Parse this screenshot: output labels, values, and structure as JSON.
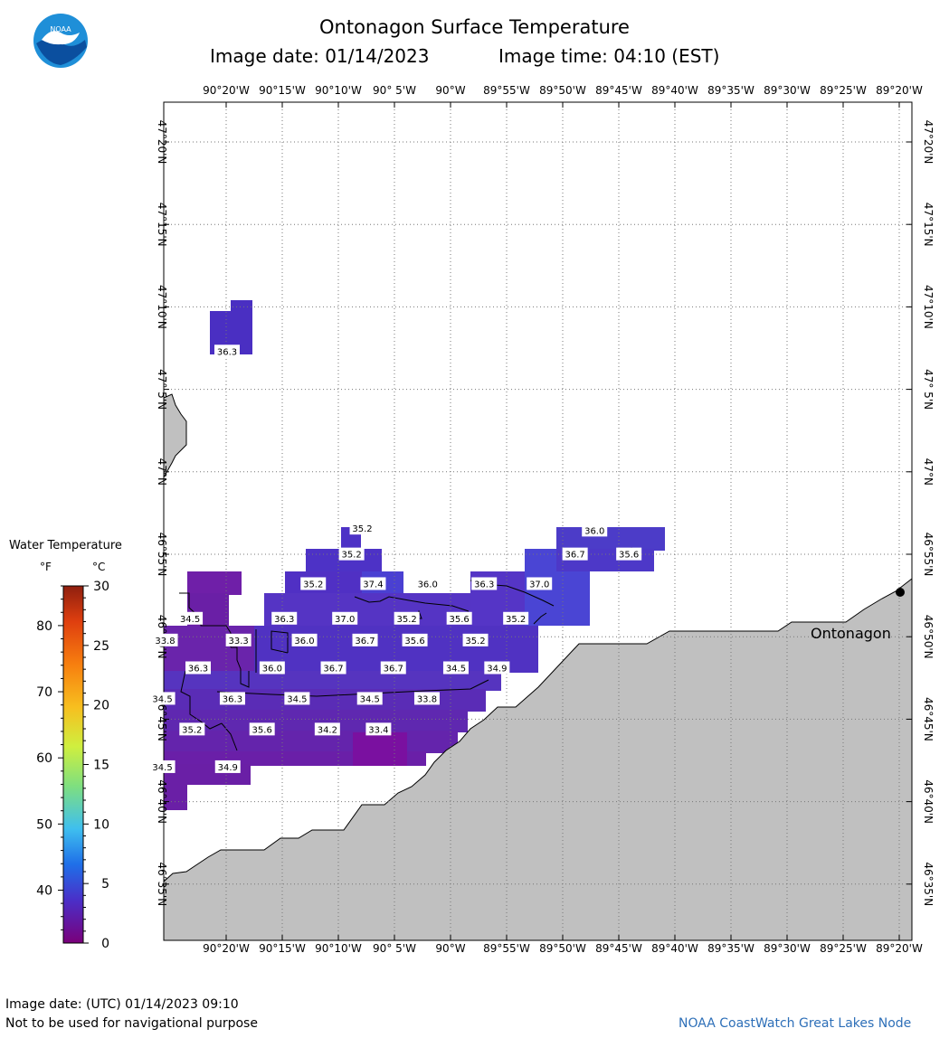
{
  "header": {
    "title": "Ontonagon Surface Temperature",
    "image_date": "Image date: 01/14/2023",
    "image_time": "Image time: 04:10 (EST)"
  },
  "logo": {
    "text": "NOAA",
    "icon": "noaa-logo"
  },
  "map": {
    "lon_labels": [
      "90°20'W",
      "90°15'W",
      "90°10'W",
      "90° 5'W",
      "90°W",
      "89°55'W",
      "89°50'W",
      "89°45'W",
      "89°40'W",
      "89°35'W",
      "89°30'W",
      "89°25'W",
      "89°20'W"
    ],
    "lat_labels": [
      "47°20'N",
      "47°15'N",
      "47°10'N",
      "47° 5'N",
      "47°N",
      "46°55'N",
      "46°50'N",
      "46°45'N",
      "46°40'N",
      "46°35'N"
    ],
    "place_label": "Ontonagon",
    "land_color": "#c0c0c0",
    "temperature_labels": [
      {
        "value": "36.3",
        "lon": -90.332,
        "lat": 47.122
      },
      {
        "value": "35.2",
        "lon": -90.131,
        "lat": 46.943
      },
      {
        "value": "36.0",
        "lon": -89.786,
        "lat": 46.941
      },
      {
        "value": "35.2",
        "lon": -90.147,
        "lat": 46.917
      },
      {
        "value": "36.7",
        "lon": -89.815,
        "lat": 46.917
      },
      {
        "value": "35.6",
        "lon": -89.735,
        "lat": 46.917
      },
      {
        "value": "35.2",
        "lon": -90.204,
        "lat": 46.887
      },
      {
        "value": "37.4",
        "lon": -90.115,
        "lat": 46.887
      },
      {
        "value": "36.0",
        "lon": -90.034,
        "lat": 46.887
      },
      {
        "value": "36.3",
        "lon": -89.95,
        "lat": 46.887
      },
      {
        "value": "37.0",
        "lon": -89.868,
        "lat": 46.887
      },
      {
        "value": "34.5",
        "lon": -90.387,
        "lat": 46.852
      },
      {
        "value": "36.3",
        "lon": -90.247,
        "lat": 46.852
      },
      {
        "value": "37.0",
        "lon": -90.157,
        "lat": 46.852
      },
      {
        "value": "35.2",
        "lon": -90.065,
        "lat": 46.852
      },
      {
        "value": "35.6",
        "lon": -89.987,
        "lat": 46.852
      },
      {
        "value": "35.2",
        "lon": -89.903,
        "lat": 46.852
      },
      {
        "value": "33.8",
        "lon": -90.424,
        "lat": 46.83
      },
      {
        "value": "33.3",
        "lon": -90.315,
        "lat": 46.83
      },
      {
        "value": "36.0",
        "lon": -90.217,
        "lat": 46.83
      },
      {
        "value": "36.7",
        "lon": -90.127,
        "lat": 46.83
      },
      {
        "value": "35.6",
        "lon": -90.053,
        "lat": 46.83
      },
      {
        "value": "35.2",
        "lon": -89.963,
        "lat": 46.83
      },
      {
        "value": "36.3",
        "lon": -90.375,
        "lat": 46.802
      },
      {
        "value": "36.0",
        "lon": -90.265,
        "lat": 46.802
      },
      {
        "value": "36.7",
        "lon": -90.174,
        "lat": 46.802
      },
      {
        "value": "36.7",
        "lon": -90.085,
        "lat": 46.802
      },
      {
        "value": "34.5",
        "lon": -89.992,
        "lat": 46.802
      },
      {
        "value": "34.9",
        "lon": -89.931,
        "lat": 46.802
      },
      {
        "value": "34.5",
        "lon": -90.428,
        "lat": 46.771
      },
      {
        "value": "36.3",
        "lon": -90.324,
        "lat": 46.771
      },
      {
        "value": "34.5",
        "lon": -90.228,
        "lat": 46.771
      },
      {
        "value": "34.5",
        "lon": -90.12,
        "lat": 46.771
      },
      {
        "value": "33.8",
        "lon": -90.035,
        "lat": 46.771
      },
      {
        "value": "35.2",
        "lon": -90.384,
        "lat": 46.74
      },
      {
        "value": "35.6",
        "lon": -90.28,
        "lat": 46.74
      },
      {
        "value": "34.2",
        "lon": -90.183,
        "lat": 46.74
      },
      {
        "value": "33.4",
        "lon": -90.107,
        "lat": 46.74
      },
      {
        "value": "34.5",
        "lon": -90.428,
        "lat": 46.702
      },
      {
        "value": "34.9",
        "lon": -90.331,
        "lat": 46.702
      }
    ]
  },
  "legend": {
    "title": "Water Temperature",
    "unit_f": "°F",
    "unit_c": "°C",
    "f_ticks": [
      "80",
      "70",
      "60",
      "50",
      "40"
    ],
    "c_ticks": [
      "30",
      "25",
      "20",
      "15",
      "10",
      "5",
      "0"
    ],
    "colors": [
      "#7a007a",
      "#3f2fc8",
      "#1f6fe8",
      "#3fbfef",
      "#7fdf7f",
      "#cfef3f",
      "#f7bf1f",
      "#f77f0f",
      "#df3f0f",
      "#8f1f0f"
    ]
  },
  "footer": {
    "utc_date": "Image date: (UTC) 01/14/2023  09:10",
    "disclaimer": "Not to be used for navigational purpose",
    "credit": "NOAA CoastWatch Great Lakes Node"
  }
}
